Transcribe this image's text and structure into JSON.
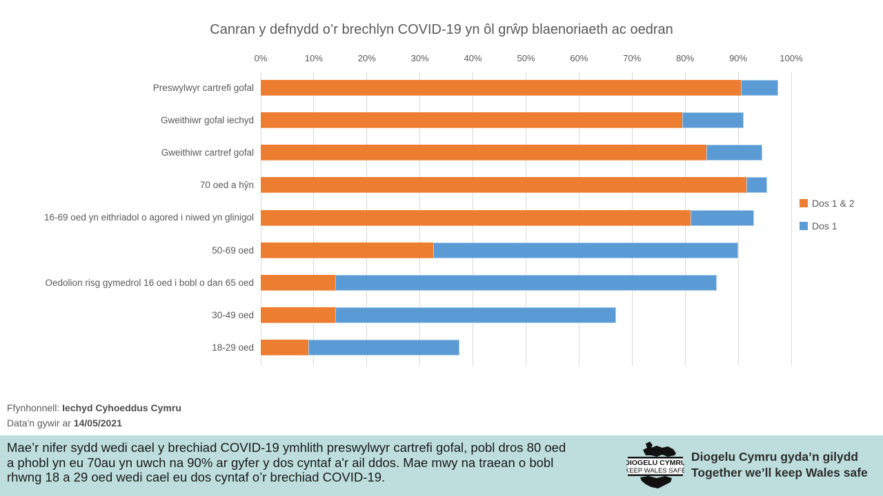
{
  "title": "Canran y defnydd o’r brechlyn COVID-19 yn ôl grŵp blaenoriaeth ac oedran",
  "chart_data": {
    "type": "bar",
    "orientation": "horizontal",
    "stacking": "stacked-segments",
    "title": "Canran y defnydd o’r brechlyn COVID-19 yn ôl grŵp blaenoriaeth ac oedran",
    "categories": [
      "Preswylwyr cartrefi gofal",
      "Gweithiwr gofal iechyd",
      "Gweithiwr cartref gofal",
      "70 oed a hŷn",
      "16-69 oed yn eithriadol o agored i niwed yn glinigol",
      "50-69 oed",
      "Oedolion risg gymedrol 16 oed i bobl o dan 65 oed",
      "30-49 oed",
      "18-29 oed"
    ],
    "series": [
      {
        "name": "Dos 1 & 2",
        "color": "#ED7D31",
        "values": [
          90.5,
          79.5,
          84,
          91.5,
          81,
          32.5,
          14,
          14,
          9
        ]
      },
      {
        "name": "Dos 1",
        "color": "#5B9BD5",
        "values": [
          7,
          11.5,
          10.5,
          4,
          12,
          57.5,
          72,
          53,
          28.5
        ]
      }
    ],
    "bar_totals": [
      97.5,
      91,
      94.5,
      95.5,
      93,
      90,
      86,
      67,
      37.5
    ],
    "xlim": [
      0,
      100
    ],
    "x_ticks": [
      "0%",
      "10%",
      "20%",
      "30%",
      "40%",
      "50%",
      "60%",
      "70%",
      "80%",
      "90%",
      "100%"
    ],
    "grid": true,
    "gridline_color": "#d9d9d9",
    "legend_position": "right"
  },
  "legend": {
    "items": [
      {
        "label": "Dos 1 & 2",
        "color": "#ED7D31"
      },
      {
        "label": "Dos 1",
        "color": "#5B9BD5"
      }
    ]
  },
  "footer": {
    "source_label": "Ffynhonnell: ",
    "source_value": "Iechyd Cyhoeddus Cymru",
    "date_label": "Data'n gywir ar ",
    "date_value": "14/05/2021"
  },
  "banner": {
    "background": "#bddedc",
    "text": "Mae’r nifer sydd wedi cael y brechiad COVID-19 ymhlith preswylwyr cartrefi gofal, pobl dros 80 oed\na phobl yn eu 70au yn uwch na 90% ar gyfer y dos cyntaf a'r ail ddos. Mae mwy na traean o bobl\nrhwng 18 a 29 oed wedi cael eu dos cyntaf o’r brechiad COVID-19.",
    "logo": {
      "line1": "DIOGELU CYMRU",
      "line2": "KEEP WALES SAFE"
    },
    "tagline": "Diogelu Cymru gyda’n gilydd\nTogether we’ll keep Wales safe"
  }
}
